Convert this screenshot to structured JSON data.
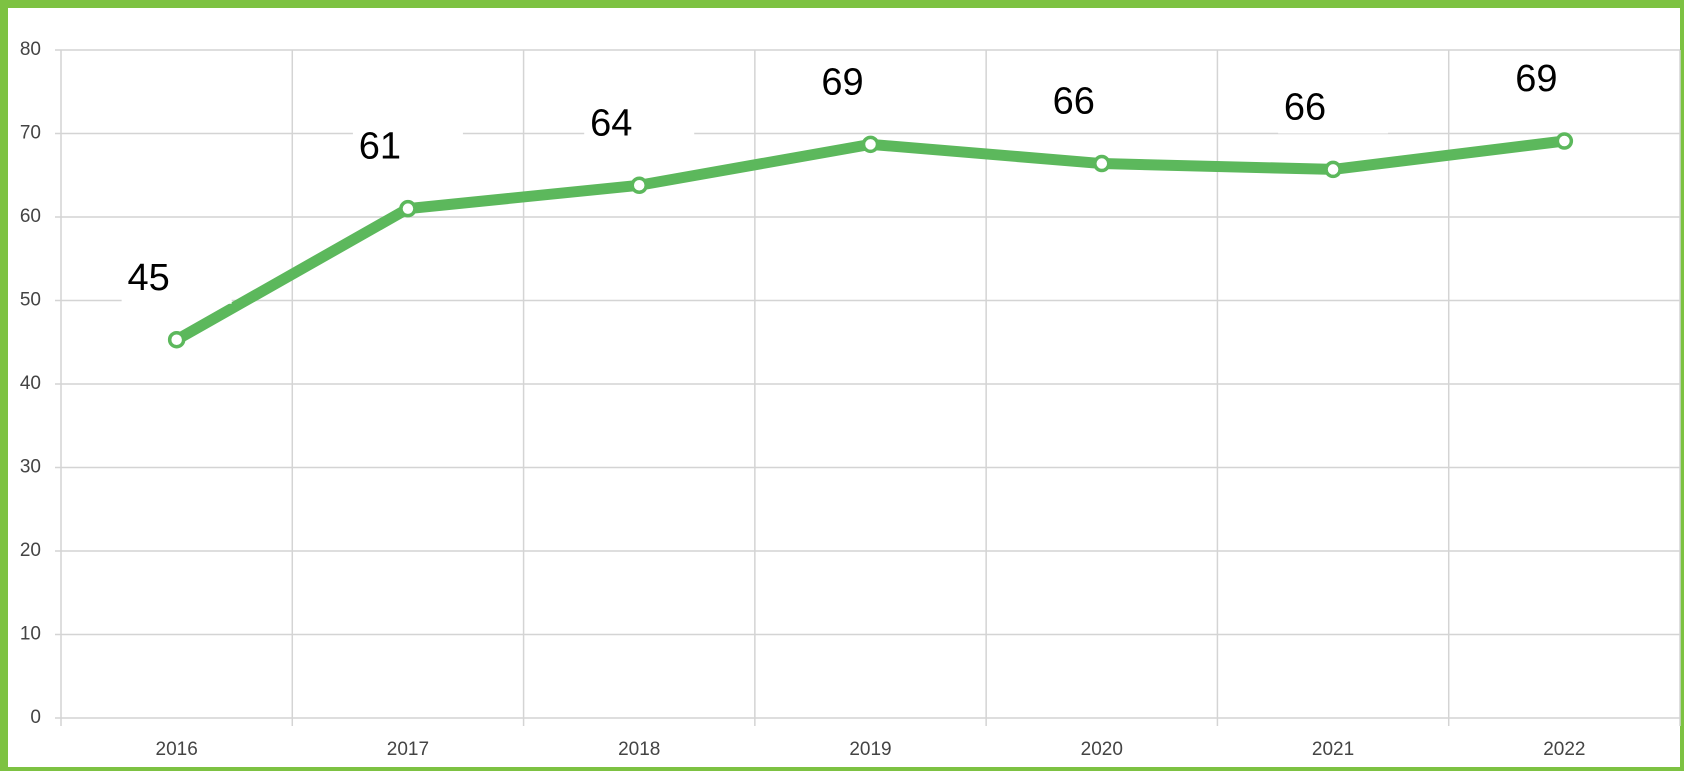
{
  "chart_data": {
    "type": "line",
    "categories": [
      "2016",
      "2017",
      "2018",
      "2019",
      "2020",
      "2021",
      "2022"
    ],
    "series": [
      {
        "color": "#5cb85c",
        "values": [
          45.3,
          61,
          63.8,
          68.7,
          66.4,
          65.7,
          69.1
        ],
        "value_labels": [
          "45",
          "61",
          "64",
          "69",
          "66",
          "66",
          "69"
        ]
      }
    ],
    "ylim": [
      0,
      80
    ],
    "yticks": [
      0,
      10,
      20,
      30,
      40,
      50,
      60,
      70,
      80
    ],
    "grid": true
  }
}
